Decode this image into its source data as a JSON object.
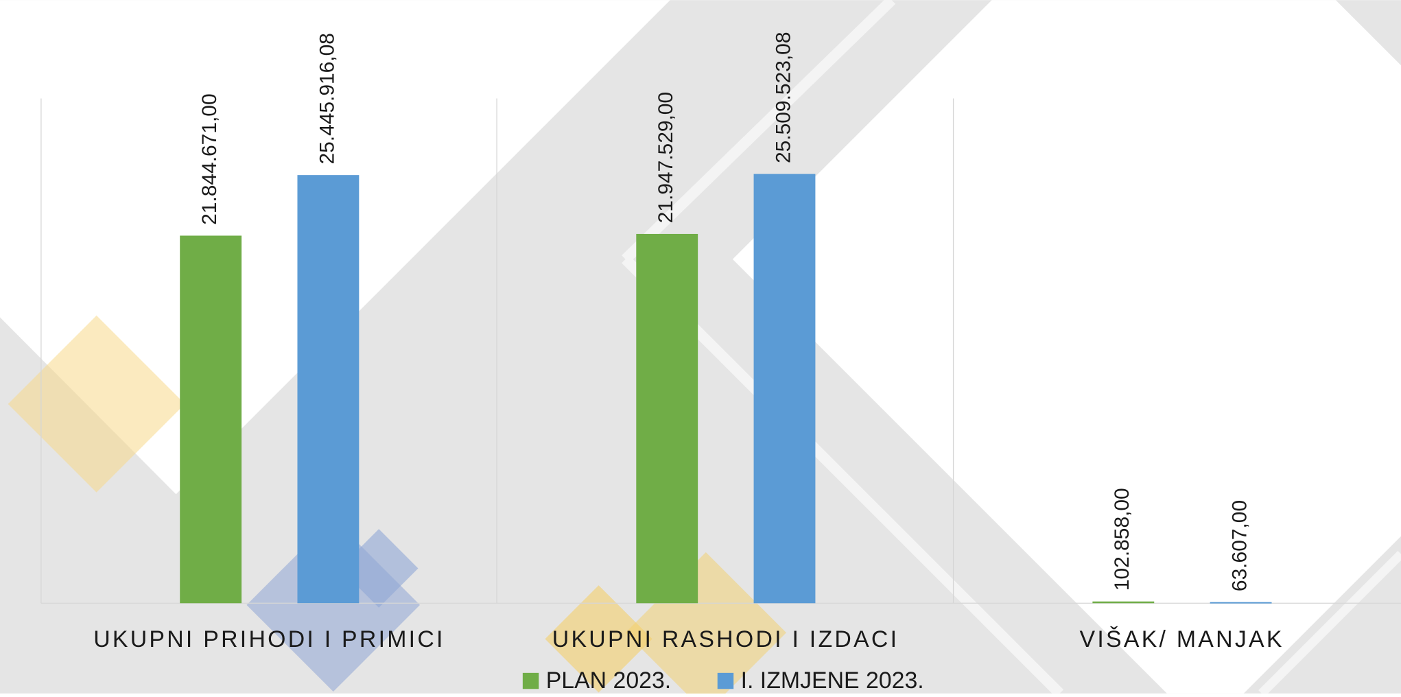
{
  "chart_data": {
    "type": "bar",
    "categories": [
      "UKUPNI PRIHODI I PRIMICI",
      "UKUPNI RASHODI I IZDACI",
      "VIŠAK/ MANJAK"
    ],
    "series": [
      {
        "name": "PLAN 2023.",
        "color": "#70ad47",
        "values": [
          21844671,
          21947529,
          102858
        ],
        "value_labels": [
          "21.844.671,00",
          "21.947.529,00",
          "102.858,00"
        ]
      },
      {
        "name": "I. IZMJENE 2023.",
        "color": "#5b9bd5",
        "values": [
          25445916.08,
          25509523.08,
          63607
        ],
        "value_labels": [
          "25.445.916,08",
          "25.509.523,08",
          "63.607,00"
        ]
      }
    ],
    "ylim": [
      0,
      30000000
    ]
  }
}
